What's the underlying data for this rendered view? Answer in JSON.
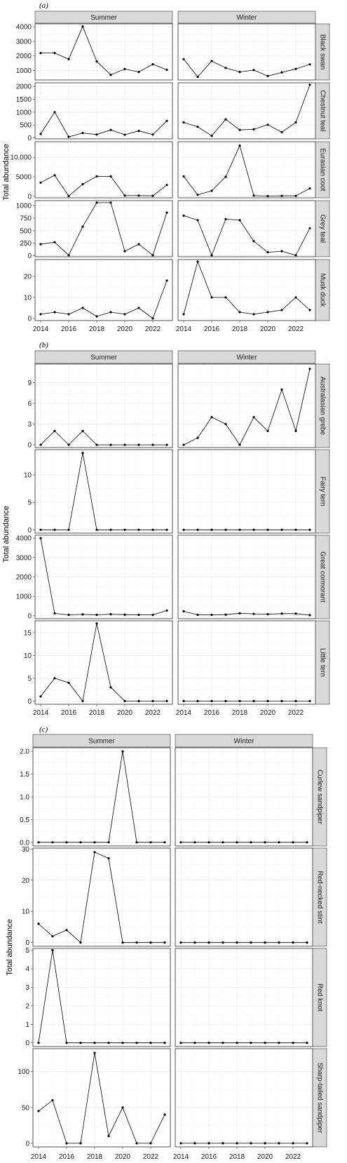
{
  "chart_data": [
    {
      "type": "line",
      "label": "(a)",
      "ylabel": "Total abundance",
      "columns": [
        "Summer",
        "Winter"
      ],
      "x": [
        2014,
        2015,
        2016,
        2017,
        2018,
        2019,
        2020,
        2021,
        2022,
        2023
      ],
      "xticks": [
        2014,
        2016,
        2018,
        2020,
        2022
      ],
      "xtick_labels": [
        "2014",
        "2016",
        "2018",
        "2020",
        "2022"
      ],
      "rows": [
        {
          "name": "Black swan",
          "ylim": [
            350,
            4200
          ],
          "yticks": [
            1000,
            2000,
            3000,
            4000
          ],
          "ytick_labels": [
            "1000",
            "2000",
            "3000",
            "4000"
          ],
          "values": {
            "Summer": [
              2200,
              2200,
              1780,
              4020,
              1620,
              700,
              1100,
              900,
              1430,
              1050
            ],
            "Winter": [
              1780,
              560,
              1650,
              1180,
              900,
              1030,
              620,
              870,
              1110,
              1420
            ]
          }
        },
        {
          "name": "Chestnut teal",
          "ylim": [
            -40,
            2140
          ],
          "yticks": [
            0,
            500,
            1000,
            1500,
            2000
          ],
          "ytick_labels": [
            "0",
            "500",
            "1000",
            "1500",
            "2000"
          ],
          "values": {
            "Summer": [
              150,
              1000,
              40,
              190,
              130,
              310,
              120,
              270,
              130,
              660
            ],
            "Winter": [
              600,
              430,
              80,
              720,
              310,
              330,
              510,
              220,
              600,
              2060
            ]
          }
        },
        {
          "name": "Eurasian coot",
          "ylim": [
            -400,
            14000
          ],
          "yticks": [
            0,
            5000,
            10000
          ],
          "ytick_labels": [
            "0",
            "5000",
            "10,000"
          ],
          "values": {
            "Summer": [
              3500,
              5400,
              50,
              3100,
              5100,
              5100,
              150,
              150,
              100,
              2900
            ],
            "Winter": [
              5100,
              350,
              1400,
              5000,
              13000,
              150,
              50,
              100,
              100,
              2000
            ]
          }
        },
        {
          "name": "Grey teal",
          "ylim": [
            -20,
            1100
          ],
          "yticks": [
            0,
            250,
            500,
            750,
            1000
          ],
          "ytick_labels": [
            "0",
            "250",
            "500",
            "750",
            "1000"
          ],
          "values": {
            "Summer": [
              230,
              270,
              10,
              580,
              1060,
              1060,
              90,
              230,
              10,
              860
            ],
            "Winter": [
              800,
              710,
              10,
              730,
              710,
              290,
              70,
              90,
              10,
              550
            ]
          }
        },
        {
          "name": "Musk duck",
          "ylim": [
            -1,
            28
          ],
          "yticks": [
            0,
            10,
            20
          ],
          "ytick_labels": [
            "0",
            "10",
            "20"
          ],
          "values": {
            "Summer": [
              2,
              3,
              2,
              5,
              1,
              3,
              2,
              5,
              0,
              18
            ],
            "Winter": [
              2,
              27,
              10,
              10,
              3,
              2,
              3,
              4,
              10,
              4
            ]
          }
        }
      ]
    },
    {
      "type": "line",
      "label": "(b)",
      "ylabel": "Total abundance",
      "columns": [
        "Summer",
        "Winter"
      ],
      "x": [
        2014,
        2015,
        2016,
        2017,
        2018,
        2019,
        2020,
        2021,
        2022,
        2023
      ],
      "xticks": [
        2014,
        2016,
        2018,
        2020,
        2022
      ],
      "xtick_labels": [
        "2014",
        "2016",
        "2018",
        "2020",
        "2022"
      ],
      "rows": [
        {
          "name": "Australasian grebe",
          "ylim": [
            -0.4,
            11.7
          ],
          "yticks": [
            0,
            3,
            6,
            9
          ],
          "ytick_labels": [
            "0",
            "3",
            "6",
            "9"
          ],
          "values": {
            "Summer": [
              0,
              2,
              0,
              2,
              0,
              0,
              0,
              0,
              0,
              0
            ],
            "Winter": [
              0,
              1,
              4,
              3,
              0,
              4,
              2,
              8,
              2,
              11
            ]
          }
        },
        {
          "name": "Fairy tern",
          "ylim": [
            -0.6,
            14.6
          ],
          "yticks": [
            0,
            5,
            10
          ],
          "ytick_labels": [
            "0",
            "5",
            "10"
          ],
          "values": {
            "Summer": [
              0,
              0,
              0,
              14,
              0,
              0,
              0,
              0,
              0,
              0
            ],
            "Winter": [
              0,
              0,
              0,
              0,
              0,
              0,
              0,
              0,
              0,
              0
            ]
          }
        },
        {
          "name": "Great cormorant",
          "ylim": [
            -150,
            4150
          ],
          "yticks": [
            0,
            1000,
            2000,
            3000,
            4000
          ],
          "ytick_labels": [
            "0",
            "1000",
            "2000",
            "3000",
            "4000"
          ],
          "values": {
            "Summer": [
              4000,
              120,
              50,
              70,
              50,
              80,
              60,
              50,
              50,
              270
            ],
            "Winter": [
              230,
              50,
              50,
              60,
              130,
              100,
              80,
              110,
              110,
              30
            ]
          }
        },
        {
          "name": "Little tern",
          "ylim": [
            -0.7,
            17.6
          ],
          "yticks": [
            0,
            5,
            10,
            15
          ],
          "ytick_labels": [
            "0",
            "5",
            "10",
            "15"
          ],
          "values": {
            "Summer": [
              1,
              5,
              4,
              0,
              17,
              3,
              0,
              0,
              0,
              0
            ],
            "Winter": [
              0,
              0,
              0,
              0,
              0,
              0,
              0,
              0,
              0,
              0
            ]
          }
        }
      ]
    },
    {
      "type": "line",
      "label": "(c)",
      "ylabel": "Total abundance",
      "columns": [
        "Summer",
        "Winter"
      ],
      "x": [
        2014,
        2015,
        2016,
        2017,
        2018,
        2019,
        2020,
        2021,
        2022,
        2023
      ],
      "xticks": [
        2014,
        2016,
        2018,
        2020,
        2022
      ],
      "xtick_labels": [
        "2014",
        "2016",
        "2018",
        "2020",
        "2022"
      ],
      "rows": [
        {
          "name": "Curlew sandpiper",
          "ylim": [
            -0.08,
            2.08
          ],
          "yticks": [
            0,
            0.5,
            1,
            1.5,
            2
          ],
          "ytick_labels": [
            "0.0",
            "0.5",
            "1.0",
            "1.5",
            "2.0"
          ],
          "values": {
            "Summer": [
              0,
              0,
              0,
              0,
              0,
              0,
              2,
              0,
              0,
              0
            ],
            "Winter": [
              0,
              0,
              0,
              0,
              0,
              0,
              0,
              0,
              0,
              0
            ]
          }
        },
        {
          "name": "Red-necked stint",
          "ylim": [
            -1.2,
            30.3
          ],
          "yticks": [
            0,
            10,
            20,
            30
          ],
          "ytick_labels": [
            "0",
            "10",
            "20",
            "30"
          ],
          "values": {
            "Summer": [
              6,
              2,
              4,
              0,
              29,
              27,
              0,
              0,
              0,
              0
            ],
            "Winter": [
              0,
              0,
              0,
              0,
              0,
              0,
              0,
              0,
              0,
              0
            ]
          }
        },
        {
          "name": "Red knot",
          "ylim": [
            -0.2,
            5.1
          ],
          "yticks": [
            0,
            1,
            2,
            3,
            4,
            5
          ],
          "ytick_labels": [
            "0",
            "1",
            "2",
            "3",
            "4",
            "5"
          ],
          "values": {
            "Summer": [
              0,
              5,
              0,
              0,
              0,
              0,
              0,
              0,
              0,
              0
            ],
            "Winter": [
              0,
              0,
              0,
              0,
              0,
              0,
              0,
              0,
              0,
              0
            ]
          }
        },
        {
          "name": "Sharp-tailed sandpiper",
          "ylim": [
            -5,
            132
          ],
          "yticks": [
            0,
            50,
            100
          ],
          "ytick_labels": [
            "0",
            "50",
            "100"
          ],
          "values": {
            "Summer": [
              45,
              60,
              0,
              0,
              126,
              10,
              50,
              0,
              0,
              40
            ],
            "Winter": [
              0,
              0,
              0,
              0,
              0,
              0,
              0,
              0,
              0,
              0
            ]
          }
        }
      ]
    }
  ]
}
